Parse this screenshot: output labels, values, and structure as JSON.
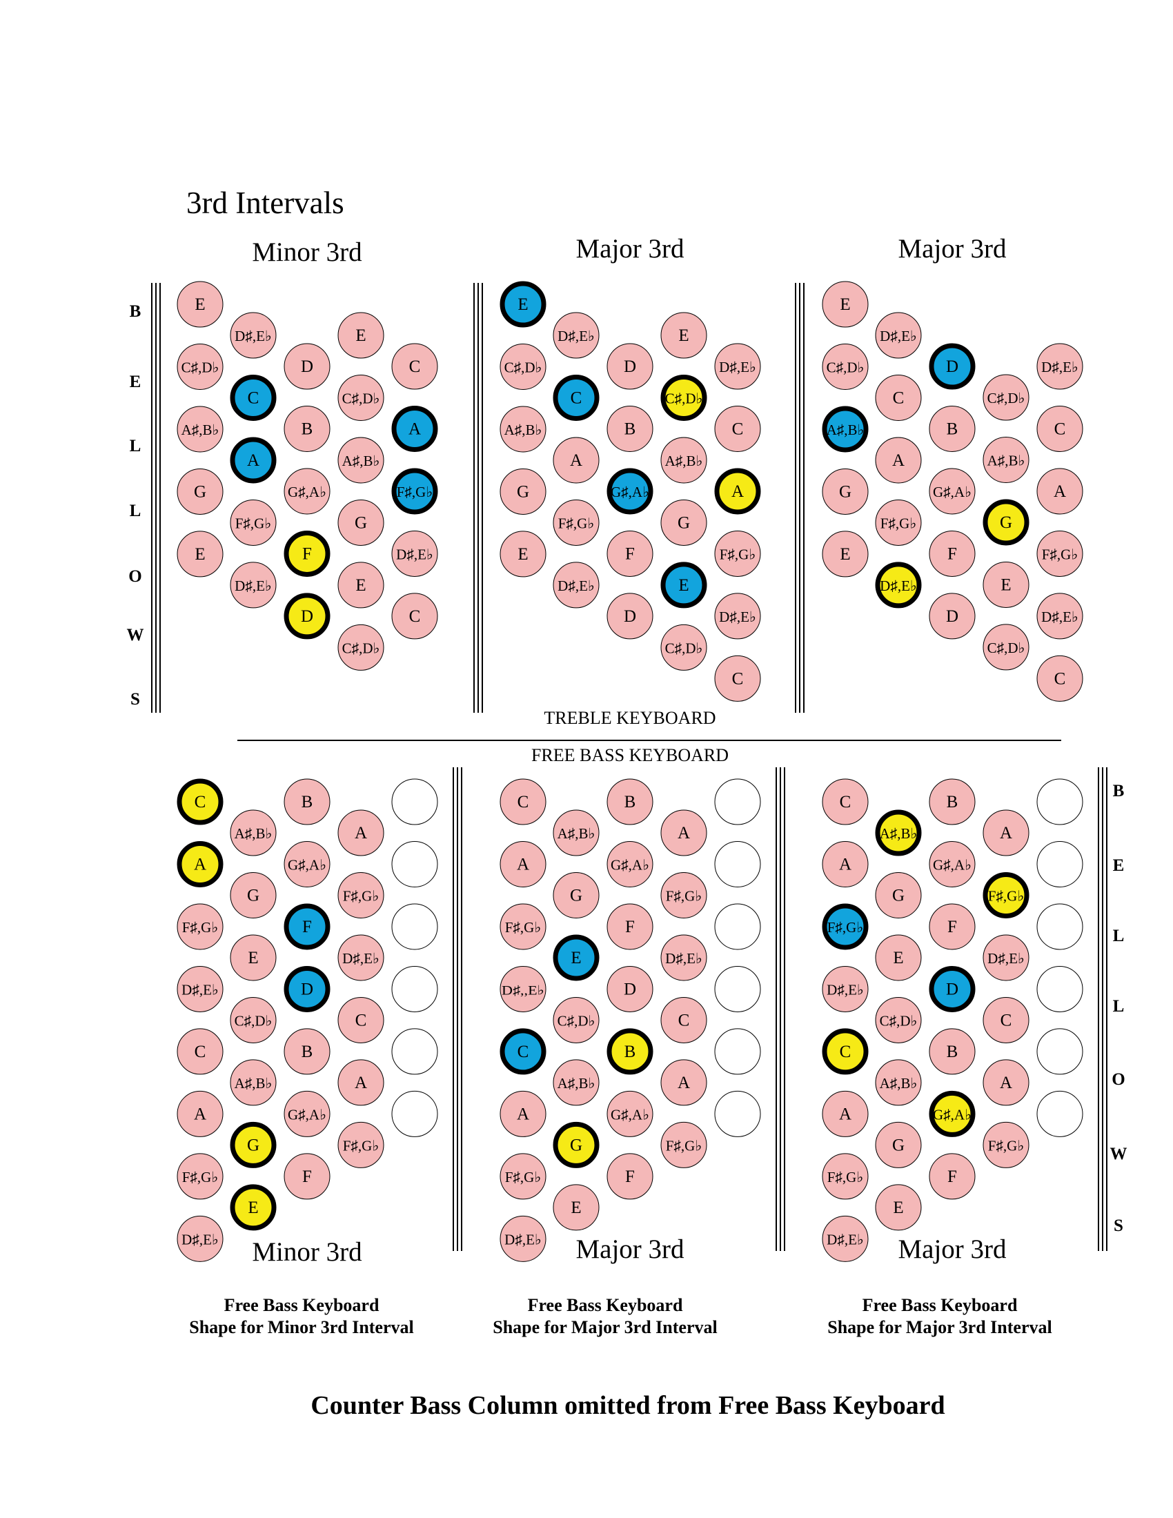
{
  "page_title": "3rd Intervals",
  "treble_label": "TREBLE KEYBOARD",
  "bass_label": "FREE BASS KEYBOARD",
  "footer": "Counter Bass Column omitted from Free Bass Keyboard",
  "bellows_letters": [
    "B",
    "E",
    "L",
    "L",
    "O",
    "W",
    "S"
  ],
  "colors": {
    "key": "#f4b8b8",
    "blue": "#12a4dd",
    "yellow": "#f6ea16",
    "empty": "#ffffff",
    "outline": "#000000"
  },
  "treble_panels": [
    {
      "title": "Minor 3rd",
      "columns": [
        [
          {
            "l": "E"
          },
          {
            "l": "C♯,D♭"
          },
          {
            "l": "A♯,B♭"
          },
          {
            "l": "G"
          },
          {
            "l": "E"
          }
        ],
        [
          {
            "l": "D♯,E♭"
          },
          {
            "l": "C",
            "h": "blue"
          },
          {
            "l": "A",
            "h": "blue"
          },
          {
            "l": "F♯,G♭"
          },
          {
            "l": "D♯,E♭"
          }
        ],
        [
          {
            "l": "D"
          },
          {
            "l": "B"
          },
          {
            "l": "G♯,A♭"
          },
          {
            "l": "F",
            "h": "yellow"
          },
          {
            "l": "D",
            "h": "yellow"
          }
        ],
        [
          {
            "l": "E"
          },
          {
            "l": "C♯,D♭"
          },
          {
            "l": "A♯,B♭"
          },
          {
            "l": "G"
          },
          {
            "l": "E"
          },
          {
            "l": "C♯,D♭"
          }
        ],
        [
          {
            "l": "C"
          },
          {
            "l": "A",
            "h": "blue"
          },
          {
            "l": "F♯,G♭",
            "h": "blue"
          },
          {
            "l": "D♯,E♭"
          },
          {
            "l": "C"
          }
        ]
      ]
    },
    {
      "title": "Major 3rd",
      "columns": [
        [
          {
            "l": "E",
            "h": "blue"
          },
          {
            "l": "C♯,D♭"
          },
          {
            "l": "A♯,B♭"
          },
          {
            "l": "G"
          },
          {
            "l": "E"
          }
        ],
        [
          {
            "l": "D♯,E♭"
          },
          {
            "l": "C",
            "h": "blue"
          },
          {
            "l": "A"
          },
          {
            "l": "F♯,G♭"
          },
          {
            "l": "D♯,E♭"
          }
        ],
        [
          {
            "l": "D"
          },
          {
            "l": "B"
          },
          {
            "l": "G♯,A♭",
            "h": "blue"
          },
          {
            "l": "F"
          },
          {
            "l": "D"
          }
        ],
        [
          {
            "l": "E"
          },
          {
            "l": "C♯,D♭",
            "h": "yellow"
          },
          {
            "l": "A♯,B♭"
          },
          {
            "l": "G"
          },
          {
            "l": "E",
            "h": "blue"
          },
          {
            "l": "C♯,D♭"
          }
        ],
        [
          {
            "l": "D♯,E♭"
          },
          {
            "l": "C"
          },
          {
            "l": "A",
            "h": "yellow"
          },
          {
            "l": "F♯,G♭"
          },
          {
            "l": "D♯,E♭"
          },
          {
            "l": "C"
          }
        ]
      ]
    },
    {
      "title": "Major 3rd",
      "columns": [
        [
          {
            "l": "E"
          },
          {
            "l": "C♯,D♭"
          },
          {
            "l": "A♯,B♭",
            "h": "blue"
          },
          {
            "l": "G"
          },
          {
            "l": "E"
          }
        ],
        [
          {
            "l": "D♯,E♭"
          },
          {
            "l": "C"
          },
          {
            "l": "A"
          },
          {
            "l": "F♯,G♭"
          },
          {
            "l": "D♯,E♭",
            "h": "yellow"
          }
        ],
        [
          {
            "l": "D",
            "h": "blue"
          },
          {
            "l": "B"
          },
          {
            "l": "G♯,A♭"
          },
          {
            "l": "F"
          },
          {
            "l": "D"
          }
        ],
        [
          {
            "l": "C♯,D♭"
          },
          {
            "l": "A♯,B♭"
          },
          {
            "l": "G",
            "h": "yellow"
          },
          {
            "l": "E"
          },
          {
            "l": "C♯,D♭"
          }
        ],
        [
          {
            "l": "D♯,E♭"
          },
          {
            "l": "C"
          },
          {
            "l": "A"
          },
          {
            "l": "F♯,G♭"
          },
          {
            "l": "D♯,E♭"
          },
          {
            "l": "C"
          }
        ]
      ]
    }
  ],
  "bass_panels": [
    {
      "title": "Minor 3rd",
      "caption_line1": "Free Bass Keyboard",
      "caption_line2": "Shape for Minor 3rd Interval",
      "columns": [
        [
          {
            "l": "C",
            "h": "yellow"
          },
          {
            "l": "A",
            "h": "yellow"
          },
          {
            "l": "F♯,G♭"
          },
          {
            "l": "D♯,E♭"
          },
          {
            "l": "C"
          },
          {
            "l": "A"
          },
          {
            "l": "F♯,G♭"
          },
          {
            "l": "D♯,E♭"
          }
        ],
        [
          {
            "l": "A♯,B♭"
          },
          {
            "l": "G"
          },
          {
            "l": "E"
          },
          {
            "l": "C♯,D♭"
          },
          {
            "l": "A♯,B♭"
          },
          {
            "l": "G",
            "h": "yellow"
          },
          {
            "l": "E",
            "h": "yellow"
          }
        ],
        [
          {
            "l": "B"
          },
          {
            "l": "G♯,A♭"
          },
          {
            "l": "F",
            "h": "blue"
          },
          {
            "l": "D",
            "h": "blue"
          },
          {
            "l": "B"
          },
          {
            "l": "G♯,A♭"
          },
          {
            "l": "F"
          }
        ],
        [
          {
            "l": "A"
          },
          {
            "l": "F♯,G♭"
          },
          {
            "l": "D♯,E♭"
          },
          {
            "l": "C"
          },
          {
            "l": "A"
          },
          {
            "l": "F♯,G♭"
          }
        ],
        [
          {
            "l": "",
            "h": "empty"
          },
          {
            "l": "",
            "h": "empty"
          },
          {
            "l": "",
            "h": "empty"
          },
          {
            "l": "",
            "h": "empty"
          },
          {
            "l": "",
            "h": "empty"
          },
          {
            "l": "",
            "h": "empty"
          }
        ]
      ]
    },
    {
      "title": "Major 3rd",
      "caption_line1": "Free Bass Keyboard",
      "caption_line2": "Shape for Major 3rd Interval",
      "columns": [
        [
          {
            "l": "C"
          },
          {
            "l": "A"
          },
          {
            "l": "F♯,G♭"
          },
          {
            "l": "D♯,,E♭"
          },
          {
            "l": "C",
            "h": "blue"
          },
          {
            "l": "A"
          },
          {
            "l": "F♯,G♭"
          },
          {
            "l": "D♯,E♭"
          }
        ],
        [
          {
            "l": "A♯,B♭"
          },
          {
            "l": "G"
          },
          {
            "l": "E",
            "h": "blue"
          },
          {
            "l": "C♯,D♭"
          },
          {
            "l": "A♯,B♭"
          },
          {
            "l": "G",
            "h": "yellow"
          },
          {
            "l": "E"
          }
        ],
        [
          {
            "l": "B"
          },
          {
            "l": "G♯,A♭"
          },
          {
            "l": "F"
          },
          {
            "l": "D"
          },
          {
            "l": "B",
            "h": "yellow"
          },
          {
            "l": "G♯,A♭"
          },
          {
            "l": "F"
          }
        ],
        [
          {
            "l": "A"
          },
          {
            "l": "F♯,G♭"
          },
          {
            "l": "D♯,E♭"
          },
          {
            "l": "C"
          },
          {
            "l": "A"
          },
          {
            "l": "F♯,G♭"
          }
        ],
        [
          {
            "l": "",
            "h": "empty"
          },
          {
            "l": "",
            "h": "empty"
          },
          {
            "l": "",
            "h": "empty"
          },
          {
            "l": "",
            "h": "empty"
          },
          {
            "l": "",
            "h": "empty"
          },
          {
            "l": "",
            "h": "empty"
          }
        ]
      ]
    },
    {
      "title": "Major 3rd",
      "caption_line1": "Free Bass Keyboard",
      "caption_line2": "Shape for Major 3rd Interval",
      "columns": [
        [
          {
            "l": "C"
          },
          {
            "l": "A"
          },
          {
            "l": "F♯,G♭",
            "h": "blue"
          },
          {
            "l": "D♯,E♭"
          },
          {
            "l": "C",
            "h": "yellow"
          },
          {
            "l": "A"
          },
          {
            "l": "F♯,G♭"
          },
          {
            "l": "D♯,E♭"
          }
        ],
        [
          {
            "l": "A♯,B♭",
            "h": "yellow"
          },
          {
            "l": "G"
          },
          {
            "l": "E"
          },
          {
            "l": "C♯,D♭"
          },
          {
            "l": "A♯,B♭"
          },
          {
            "l": "G"
          },
          {
            "l": "E"
          }
        ],
        [
          {
            "l": "B"
          },
          {
            "l": "G♯,A♭"
          },
          {
            "l": "F"
          },
          {
            "l": "D",
            "h": "blue"
          },
          {
            "l": "B"
          },
          {
            "l": "G♯,A♭",
            "h": "yellow"
          },
          {
            "l": "F"
          }
        ],
        [
          {
            "l": "A"
          },
          {
            "l": "F♯,G♭",
            "h": "yellow"
          },
          {
            "l": "D♯,E♭"
          },
          {
            "l": "C"
          },
          {
            "l": "A"
          },
          {
            "l": "F♯,G♭"
          }
        ],
        [
          {
            "l": "",
            "h": "empty"
          },
          {
            "l": "",
            "h": "empty"
          },
          {
            "l": "",
            "h": "empty"
          },
          {
            "l": "",
            "h": "empty"
          },
          {
            "l": "",
            "h": "empty"
          },
          {
            "l": "",
            "h": "empty"
          }
        ]
      ]
    }
  ]
}
